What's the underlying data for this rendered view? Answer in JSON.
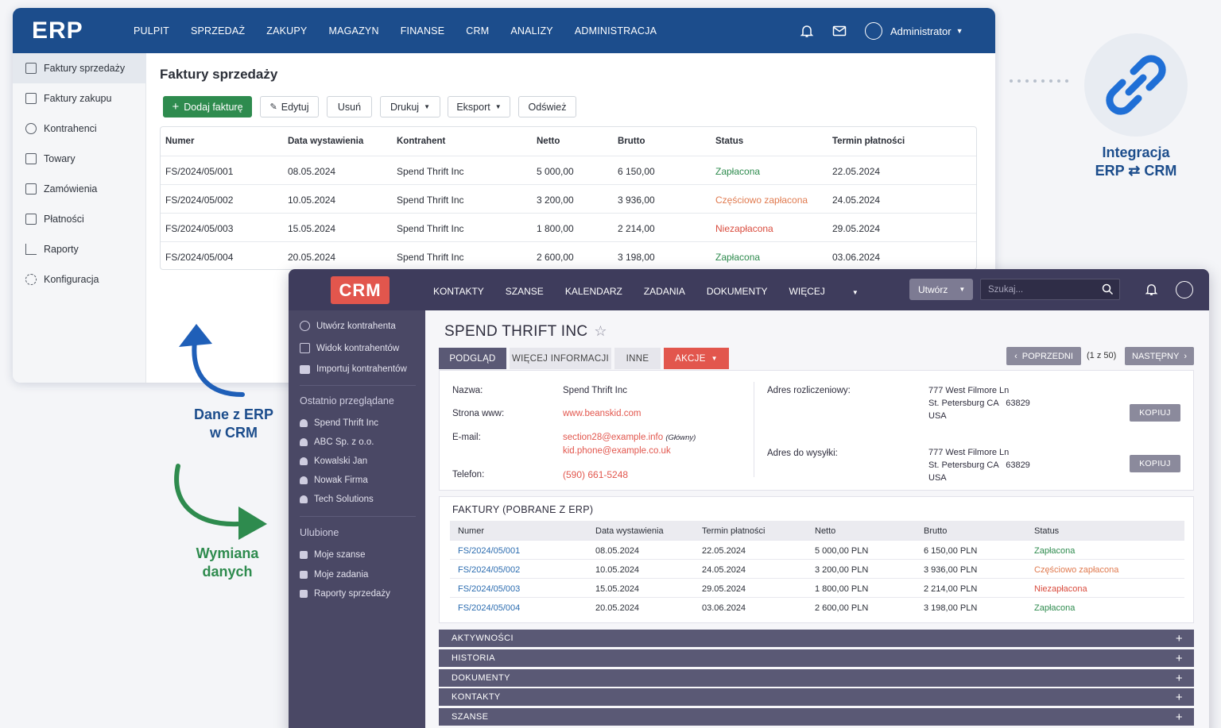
{
  "erp": {
    "logo": "ERP",
    "nav": [
      "PULPIT",
      "SPRZEDAŻ",
      "ZAKUPY",
      "MAGAZYN",
      "FINANSE",
      "CRM",
      "ANALIZY",
      "ADMINISTRACJA"
    ],
    "user": "Administrator",
    "sidebar": [
      "Faktury sprzedaży",
      "Faktury zakupu",
      "Kontrahenci",
      "Towary",
      "Zamówienia",
      "Płatności",
      "Raporty",
      "Konfiguracja"
    ],
    "page_title": "Faktury sprzedaży",
    "toolbar": {
      "add": "Dodaj fakturę",
      "edit": "Edytuj",
      "delete": "Usuń",
      "print": "Drukuj",
      "export": "Eksport",
      "refresh": "Odśwież"
    },
    "table": {
      "headers": [
        "Numer",
        "Data wystawienia",
        "Kontrahent",
        "Netto",
        "Brutto",
        "Status",
        "Termin płatności"
      ],
      "rows": [
        [
          "FS/2024/05/001",
          "08.05.2024",
          "Spend Thrift Inc",
          "5 000,00",
          "6 150,00",
          "Zapłacona",
          "22.05.2024"
        ],
        [
          "FS/2024/05/002",
          "10.05.2024",
          "Spend Thrift Inc",
          "3 200,00",
          "3 936,00",
          "Częściowo zapłacona",
          "24.05.2024"
        ],
        [
          "FS/2024/05/003",
          "15.05.2024",
          "Spend Thrift Inc",
          "1 800,00",
          "2 214,00",
          "Niezapłacona",
          "29.05.2024"
        ],
        [
          "FS/2024/05/004",
          "20.05.2024",
          "Spend Thrift Inc",
          "2 600,00",
          "3 198,00",
          "Zapłacona",
          "03.06.2024"
        ]
      ]
    }
  },
  "integration": {
    "line1": "Integracja",
    "line2": "ERP ⇄ CRM"
  },
  "captions": {
    "erp_to_crm_1": "Dane z ERP",
    "erp_to_crm_2": "w CRM",
    "exchange_1": "Wymiana",
    "exchange_2": "danych"
  },
  "crm": {
    "logo": "CRM",
    "nav": [
      "KONTAKTY",
      "SZANSE",
      "KALENDARZ",
      "ZADANIA",
      "DOKUMENTY",
      "WIĘCEJ"
    ],
    "create": "Utwórz",
    "search_placeholder": "Szukaj...",
    "sidebar": {
      "actions": [
        "Utwórz kontrahenta",
        "Widok kontrahentów",
        "Importuj kontrahentów"
      ],
      "recent_title": "Ostatnio przeglądane",
      "recent": [
        "Spend Thrift Inc",
        "ABC Sp. z o.o.",
        "Kowalski Jan",
        "Nowak Firma",
        "Tech Solutions"
      ],
      "fav_title": "Ulubione",
      "favorites": [
        "Moje szanse",
        "Moje zadania",
        "Raporty sprzedaży"
      ]
    },
    "record_title": "SPEND THRIFT INC",
    "tabs": [
      "PODGLĄD",
      "WIĘCEJ INFORMACJI",
      "INNE",
      "AKCJE"
    ],
    "pager": {
      "prev": "POPRZEDNI",
      "count": "(1 z 50)",
      "next": "NASTĘPNY"
    },
    "details": {
      "name_label": "Nazwa:",
      "name": "Spend Thrift Inc",
      "www_label": "Strona www:",
      "www": "www.beanskid.com",
      "email_label": "E-mail:",
      "email1": "section28@example.info",
      "email1_note": "(Główny)",
      "email2": "kid.phone@example.co.uk",
      "phone_label": "Telefon:",
      "phone": "(590) 661-5248",
      "billing_label": "Adres rozliczeniowy:",
      "billing": [
        "777 West Filmore Ln",
        "St. Petersburg CA   63829",
        "USA"
      ],
      "shipping_label": "Adres do wysyłki:",
      "shipping": [
        "777 West Filmore Ln",
        "St. Petersburg CA   63829",
        "USA"
      ],
      "copy": "KOPIUJ"
    },
    "invoices": {
      "title": "FAKTURY (POBRANE Z ERP)",
      "headers": [
        "Numer",
        "Data wystawienia",
        "Termin płatności",
        "Netto",
        "Brutto",
        "Status"
      ],
      "rows": [
        [
          "FS/2024/05/001",
          "08.05.2024",
          "22.05.2024",
          "5 000,00 PLN",
          "6 150,00 PLN",
          "Zapłacona"
        ],
        [
          "FS/2024/05/002",
          "10.05.2024",
          "24.05.2024",
          "3 200,00 PLN",
          "3 936,00 PLN",
          "Częściowo zapłacona"
        ],
        [
          "FS/2024/05/003",
          "15.05.2024",
          "29.05.2024",
          "1 800,00 PLN",
          "2 214,00 PLN",
          "Niezapłacona"
        ],
        [
          "FS/2024/05/004",
          "20.05.2024",
          "03.06.2024",
          "2 600,00 PLN",
          "3 198,00 PLN",
          "Zapłacona"
        ]
      ]
    },
    "sections": [
      "AKTYWNOŚCI",
      "HISTORIA",
      "DOKUMENTY",
      "KONTAKTY",
      "SZANSE"
    ]
  },
  "colors": {
    "erp_header": "#1c4d8c",
    "crm_header": "#3e3c5c",
    "crm_logo": "#e2564d",
    "paid": "#2e8b4e",
    "partial": "#e07a4f",
    "unpaid": "#d94b3d"
  }
}
